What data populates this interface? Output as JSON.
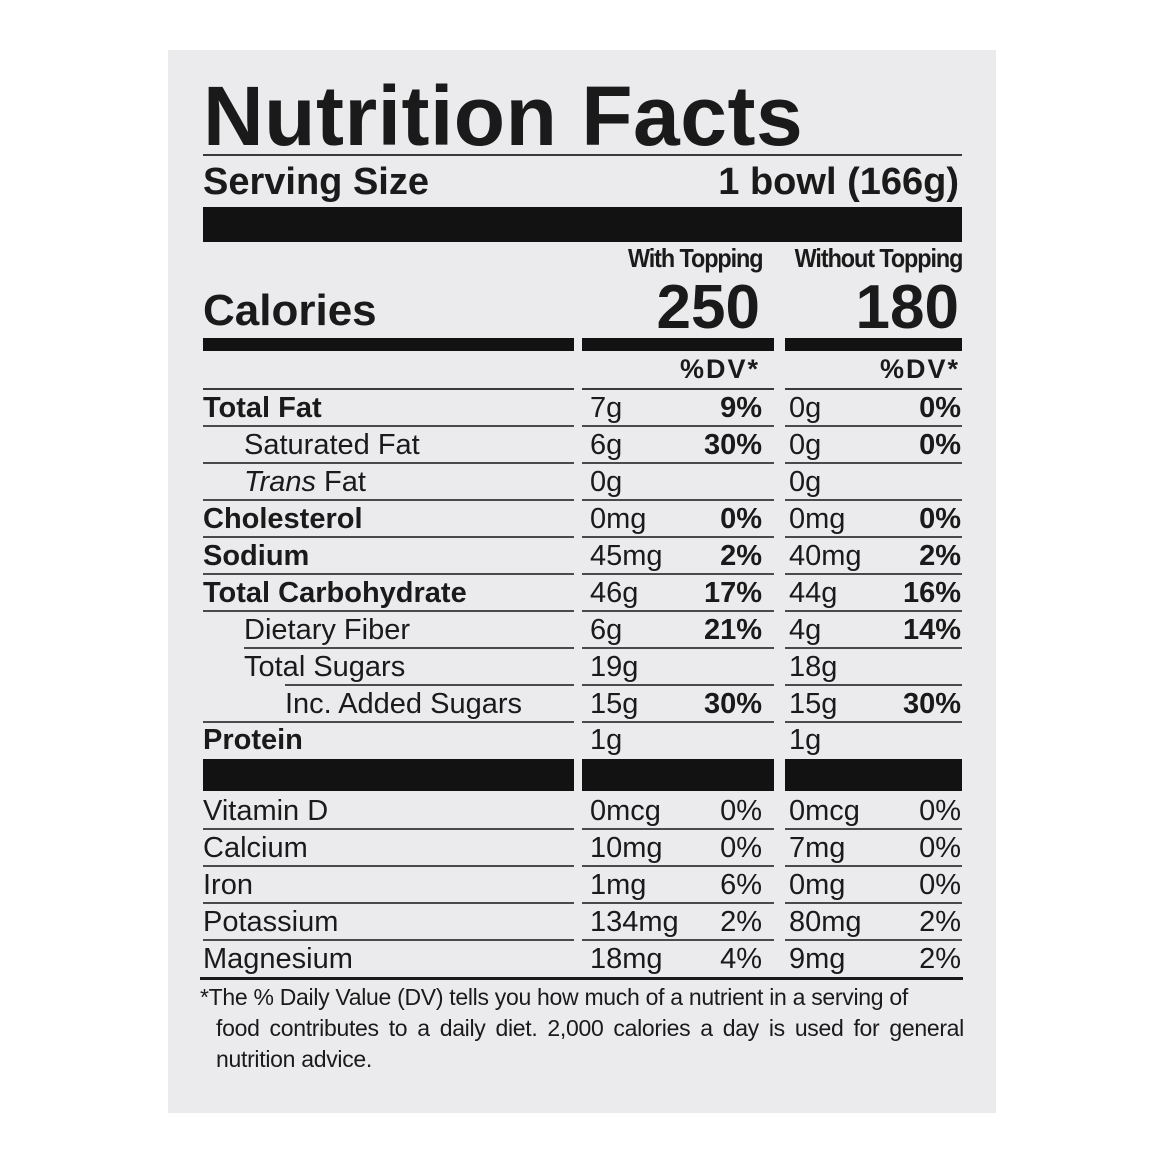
{
  "label": {
    "title": "Nutrition Facts",
    "serving_size_label": "Serving Size",
    "serving_size_value": "1 bowl (166g)",
    "columns": [
      {
        "header": "With Topping",
        "calories": "250",
        "dv_header": "%DV*"
      },
      {
        "header": "Without Topping",
        "calories": "180",
        "dv_header": "%DV*"
      }
    ],
    "calories_label": "Calories",
    "nutrients": [
      {
        "name": "Total Fat",
        "style": "bold",
        "indent": 0,
        "with_amount": "7g",
        "with_dv": "9%",
        "without_amount": "0g",
        "without_dv": "0%"
      },
      {
        "name": "Saturated Fat",
        "style": "regular",
        "indent": 1,
        "with_amount": "6g",
        "with_dv": "30%",
        "without_amount": "0g",
        "without_dv": "0%"
      },
      {
        "name_italic": "Trans",
        "name": " Fat",
        "style": "regular",
        "indent": 1,
        "with_amount": "0g",
        "with_dv": "",
        "without_amount": "0g",
        "without_dv": ""
      },
      {
        "name": "Cholesterol",
        "style": "bold",
        "indent": 0,
        "with_amount": "0mg",
        "with_dv": "0%",
        "without_amount": "0mg",
        "without_dv": "0%"
      },
      {
        "name": "Sodium",
        "style": "bold",
        "indent": 0,
        "with_amount": "45mg",
        "with_dv": "2%",
        "without_amount": "40mg",
        "without_dv": "2%"
      },
      {
        "name": "Total Carbohydrate",
        "style": "bold",
        "indent": 0,
        "with_amount": "46g",
        "with_dv": "17%",
        "without_amount": "44g",
        "without_dv": "16%"
      },
      {
        "name": "Dietary Fiber",
        "style": "regular",
        "indent": 1,
        "with_amount": "6g",
        "with_dv": "21%",
        "without_amount": "4g",
        "without_dv": "14%"
      },
      {
        "name": "Total Sugars",
        "style": "regular",
        "indent": 1,
        "with_amount": "19g",
        "with_dv": "",
        "without_amount": "18g",
        "without_dv": ""
      },
      {
        "name": "Inc. Added Sugars",
        "style": "regular",
        "indent": 2,
        "with_amount": "15g",
        "with_dv": "30%",
        "without_amount": "15g",
        "without_dv": "30%"
      },
      {
        "name": "Protein",
        "style": "bold",
        "indent": 0,
        "with_amount": "1g",
        "with_dv": "",
        "without_amount": "1g",
        "without_dv": ""
      }
    ],
    "vitamins": [
      {
        "name": "Vitamin D",
        "with_amount": "0mcg",
        "with_dv": "0%",
        "without_amount": "0mcg",
        "without_dv": "0%"
      },
      {
        "name": "Calcium",
        "with_amount": "10mg",
        "with_dv": "0%",
        "without_amount": "7mg",
        "without_dv": "0%"
      },
      {
        "name": "Iron",
        "with_amount": "1mg",
        "with_dv": "6%",
        "without_amount": "0mg",
        "without_dv": "0%"
      },
      {
        "name": "Potassium",
        "with_amount": "134mg",
        "with_dv": "2%",
        "without_amount": "80mg",
        "without_dv": "2%"
      },
      {
        "name": "Magnesium",
        "with_amount": "18mg",
        "with_dv": "4%",
        "without_amount": "9mg",
        "without_dv": "2%"
      }
    ],
    "footnote_line1": "*The % Daily Value (DV) tells you how much of a nutrient in a serving of",
    "footnote_rest": "food contributes to a daily diet. 2,000 calories a day is used for general nutrition advice."
  },
  "colors": {
    "background": "#ffffff",
    "panel": "#ebebed",
    "ink": "#121212"
  }
}
